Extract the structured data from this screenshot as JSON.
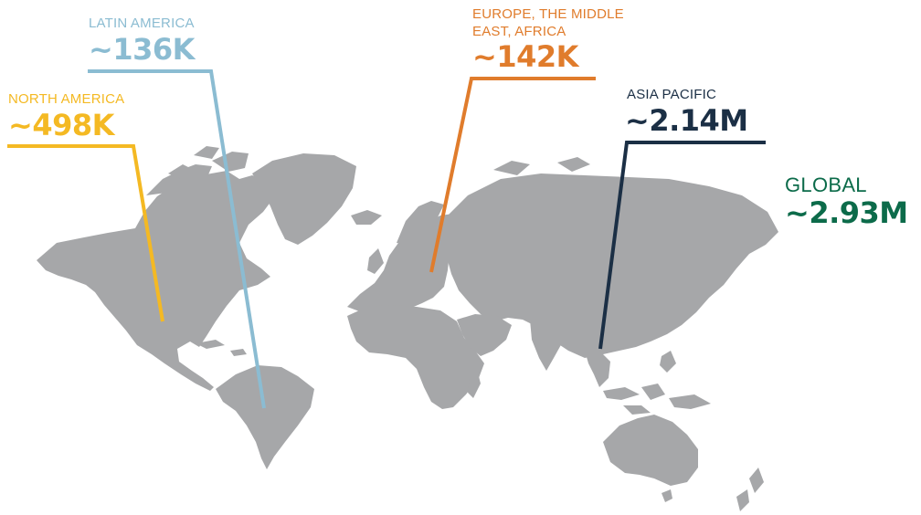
{
  "regions": [
    {
      "id": "latin-america",
      "label": "LATIN AMERICA",
      "value": "~136K",
      "color": "#8bbcd2"
    },
    {
      "id": "north-america",
      "label": "NORTH AMERICA",
      "value": "~498K",
      "color": "#f4b923"
    },
    {
      "id": "emea",
      "label": "EUROPE, THE MIDDLE EAST, AFRICA",
      "value": "~142K",
      "color": "#e07c2c"
    },
    {
      "id": "asia-pacific",
      "label": "ASIA PACIFIC",
      "value": "~2.14M",
      "color": "#1b2f45"
    }
  ],
  "global": {
    "label": "GLOBAL",
    "value": "~2.93M",
    "color": "#0c6b4a"
  },
  "map": {
    "land_color": "#a6a7a9"
  }
}
